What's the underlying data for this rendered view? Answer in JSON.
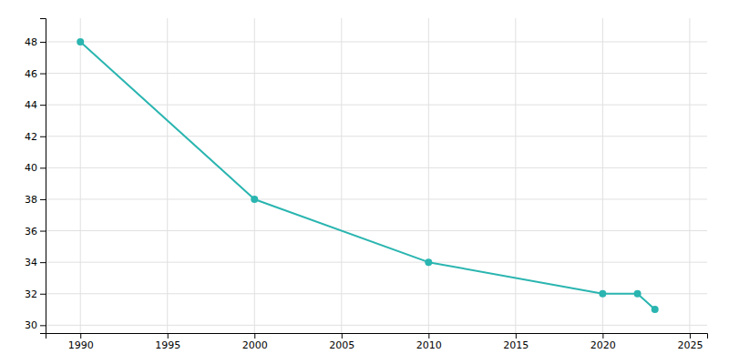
{
  "chart_data": {
    "type": "line",
    "x": [
      1990,
      2000,
      2010,
      2020,
      2022,
      2023
    ],
    "values": [
      48,
      38,
      34,
      32,
      32,
      31
    ],
    "color": "#2ab5b0",
    "marker": "circle",
    "xlim": [
      1988,
      2026
    ],
    "ylim": [
      29.5,
      49.5
    ],
    "xticks": [
      1990,
      1995,
      2000,
      2005,
      2010,
      2015,
      2020,
      2025
    ],
    "yticks": [
      30,
      32,
      34,
      36,
      38,
      40,
      42,
      44,
      46,
      48
    ],
    "grid": true
  }
}
